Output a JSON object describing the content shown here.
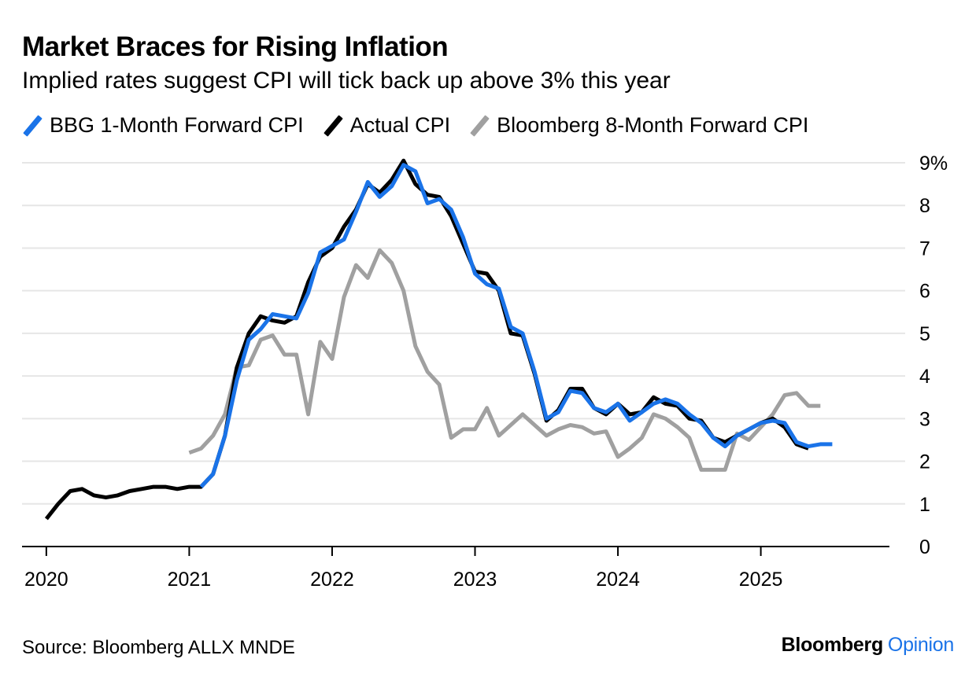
{
  "title": "Market Braces for Rising Inflation",
  "subtitle": "Implied rates suggest CPI will tick back up above 3% this year",
  "source": "Source: Bloomberg ALLX MNDE",
  "brand": {
    "name": "Bloomberg",
    "suffix": "Opinion"
  },
  "colors": {
    "forward_1m": "#1a73e8",
    "actual": "#000000",
    "forward_8m": "#a0a0a0",
    "grid": "#e6e6e6",
    "axis": "#000000",
    "brand_accent": "#1a73e8"
  },
  "chart_data": {
    "type": "line",
    "ylim": [
      0,
      9
    ],
    "yticks": [
      "0",
      "1",
      "2",
      "3",
      "4",
      "5",
      "6",
      "7",
      "8",
      "9%"
    ],
    "xlim": [
      2019.83,
      2025.9
    ],
    "xticks": [
      "2020",
      "2021",
      "2022",
      "2023",
      "2024",
      "2025"
    ],
    "grid": true,
    "y_axis_side": "right",
    "legend_position": "top",
    "series": [
      {
        "name": "BBG 1-Month Forward CPI",
        "color": "#1a73e8",
        "x": [
          2021.083,
          2021.167,
          2021.25,
          2021.333,
          2021.417,
          2021.5,
          2021.583,
          2021.667,
          2021.75,
          2021.833,
          2021.917,
          2022.0,
          2022.083,
          2022.167,
          2022.25,
          2022.333,
          2022.417,
          2022.5,
          2022.583,
          2022.667,
          2022.75,
          2022.833,
          2022.917,
          2023.0,
          2023.083,
          2023.167,
          2023.25,
          2023.333,
          2023.417,
          2023.5,
          2023.583,
          2023.667,
          2023.75,
          2023.833,
          2023.917,
          2024.0,
          2024.083,
          2024.167,
          2024.25,
          2024.333,
          2024.417,
          2024.5,
          2024.583,
          2024.667,
          2024.75,
          2024.833,
          2024.917,
          2025.0,
          2025.083,
          2025.167,
          2025.25,
          2025.333,
          2025.417,
          2025.5
        ],
        "values": [
          1.4,
          1.7,
          2.6,
          3.9,
          4.85,
          5.1,
          5.45,
          5.4,
          5.35,
          5.95,
          6.9,
          7.05,
          7.2,
          7.85,
          8.55,
          8.2,
          8.45,
          8.95,
          8.8,
          8.05,
          8.15,
          7.9,
          7.25,
          6.4,
          6.15,
          6.05,
          5.15,
          5.0,
          4.1,
          3.0,
          3.15,
          3.65,
          3.6,
          3.25,
          3.15,
          3.35,
          2.95,
          3.15,
          3.35,
          3.45,
          3.35,
          3.1,
          2.9,
          2.55,
          2.35,
          2.6,
          2.75,
          2.9,
          2.95,
          2.9,
          2.45,
          2.35,
          2.4,
          2.4
        ]
      },
      {
        "name": "Actual CPI",
        "color": "#000000",
        "x": [
          2020.0,
          2020.083,
          2020.167,
          2020.25,
          2020.333,
          2020.417,
          2020.5,
          2020.583,
          2020.667,
          2020.75,
          2020.833,
          2020.917,
          2021.0,
          2021.083,
          2021.167,
          2021.25,
          2021.333,
          2021.417,
          2021.5,
          2021.583,
          2021.667,
          2021.75,
          2021.833,
          2021.917,
          2022.0,
          2022.083,
          2022.167,
          2022.25,
          2022.333,
          2022.417,
          2022.5,
          2022.583,
          2022.667,
          2022.75,
          2022.833,
          2022.917,
          2023.0,
          2023.083,
          2023.167,
          2023.25,
          2023.333,
          2023.417,
          2023.5,
          2023.583,
          2023.667,
          2023.75,
          2023.833,
          2023.917,
          2024.0,
          2024.083,
          2024.167,
          2024.25,
          2024.333,
          2024.417,
          2024.5,
          2024.583,
          2024.667,
          2024.75,
          2024.833,
          2024.917,
          2025.0,
          2025.083,
          2025.167,
          2025.25,
          2025.333
        ],
        "values": [
          0.65,
          1.0,
          1.3,
          1.35,
          1.2,
          1.15,
          1.2,
          1.3,
          1.35,
          1.4,
          1.4,
          1.35,
          1.4,
          1.4,
          1.7,
          2.6,
          4.2,
          5.0,
          5.4,
          5.3,
          5.25,
          5.4,
          6.2,
          6.8,
          7.0,
          7.5,
          7.9,
          8.5,
          8.3,
          8.6,
          9.05,
          8.5,
          8.25,
          8.2,
          7.75,
          7.1,
          6.45,
          6.4,
          6.0,
          5.0,
          4.95,
          4.05,
          2.95,
          3.2,
          3.7,
          3.7,
          3.25,
          3.1,
          3.35,
          3.1,
          3.15,
          3.5,
          3.35,
          3.3,
          3.0,
          2.95,
          2.55,
          2.45,
          2.6,
          2.75,
          2.9,
          3.0,
          2.8,
          2.4,
          2.3
        ]
      },
      {
        "name": "Bloomberg 8-Month Forward CPI",
        "color": "#a0a0a0",
        "x": [
          2021.0,
          2021.083,
          2021.167,
          2021.25,
          2021.333,
          2021.417,
          2021.5,
          2021.583,
          2021.667,
          2021.75,
          2021.833,
          2021.917,
          2022.0,
          2022.083,
          2022.167,
          2022.25,
          2022.333,
          2022.417,
          2022.5,
          2022.583,
          2022.667,
          2022.75,
          2022.833,
          2022.917,
          2023.0,
          2023.083,
          2023.167,
          2023.25,
          2023.333,
          2023.417,
          2023.5,
          2023.583,
          2023.667,
          2023.75,
          2023.833,
          2023.917,
          2024.0,
          2024.083,
          2024.167,
          2024.25,
          2024.333,
          2024.417,
          2024.5,
          2024.583,
          2024.667,
          2024.75,
          2024.833,
          2024.917,
          2025.0,
          2025.083,
          2025.167,
          2025.25,
          2025.333,
          2025.417
        ],
        "values": [
          2.2,
          2.3,
          2.6,
          3.1,
          4.2,
          4.25,
          4.85,
          4.95,
          4.5,
          4.5,
          3.1,
          4.8,
          4.4,
          5.85,
          6.6,
          6.3,
          6.95,
          6.65,
          6.0,
          4.7,
          4.1,
          3.8,
          2.55,
          2.75,
          2.75,
          3.25,
          2.6,
          2.85,
          3.1,
          2.85,
          2.6,
          2.75,
          2.85,
          2.8,
          2.65,
          2.7,
          2.1,
          2.3,
          2.55,
          3.1,
          3.0,
          2.8,
          2.55,
          1.8,
          1.8,
          1.8,
          2.65,
          2.5,
          2.8,
          3.1,
          3.55,
          3.6,
          3.3,
          3.3
        ]
      }
    ]
  }
}
